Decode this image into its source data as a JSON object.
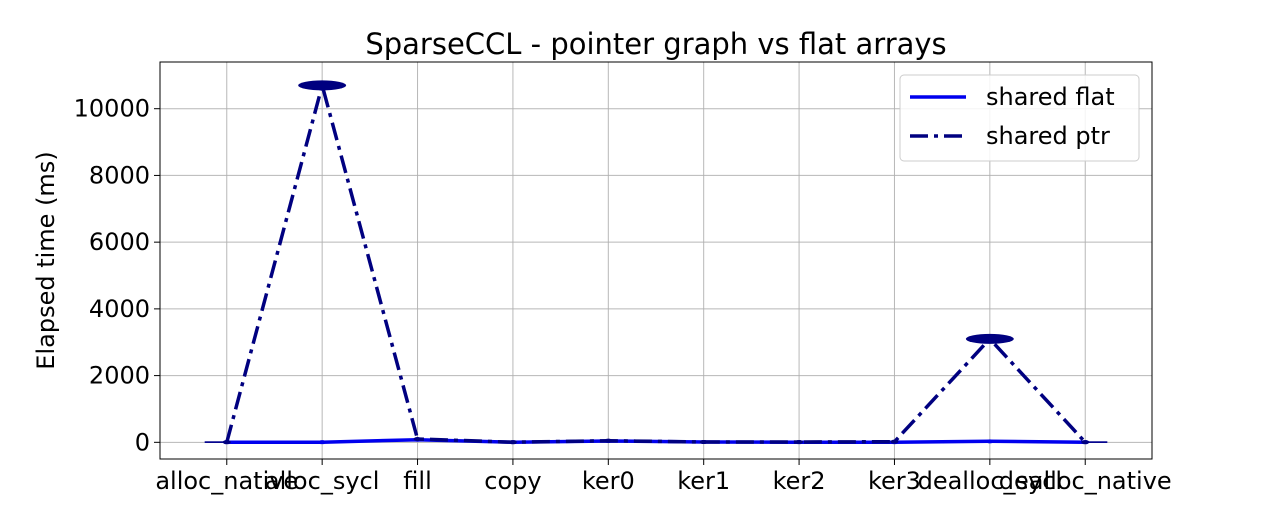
{
  "chart_data": {
    "type": "line",
    "title": "SparseCCL - pointer graph vs flat arrays",
    "xlabel": "",
    "ylabel": "Elapsed time (ms)",
    "categories": [
      "alloc_native",
      "alloc_sycl",
      "fill",
      "copy",
      "ker0",
      "ker1",
      "ker2",
      "ker3",
      "dealloc_sycl",
      "dealloc_native"
    ],
    "ylim": [
      -500,
      11400
    ],
    "yticks": [
      0,
      2000,
      4000,
      6000,
      8000,
      10000
    ],
    "grid": true,
    "legend_position": "top-right",
    "series": [
      {
        "name": "shared flat",
        "style": "solid",
        "color": "#0000ee",
        "values": [
          5,
          5,
          80,
          5,
          40,
          10,
          5,
          5,
          30,
          5
        ]
      },
      {
        "name": "shared ptr",
        "style": "dashdot",
        "color": "#000080",
        "values": [
          5,
          10700,
          100,
          5,
          50,
          10,
          10,
          20,
          3100,
          5
        ]
      }
    ]
  }
}
